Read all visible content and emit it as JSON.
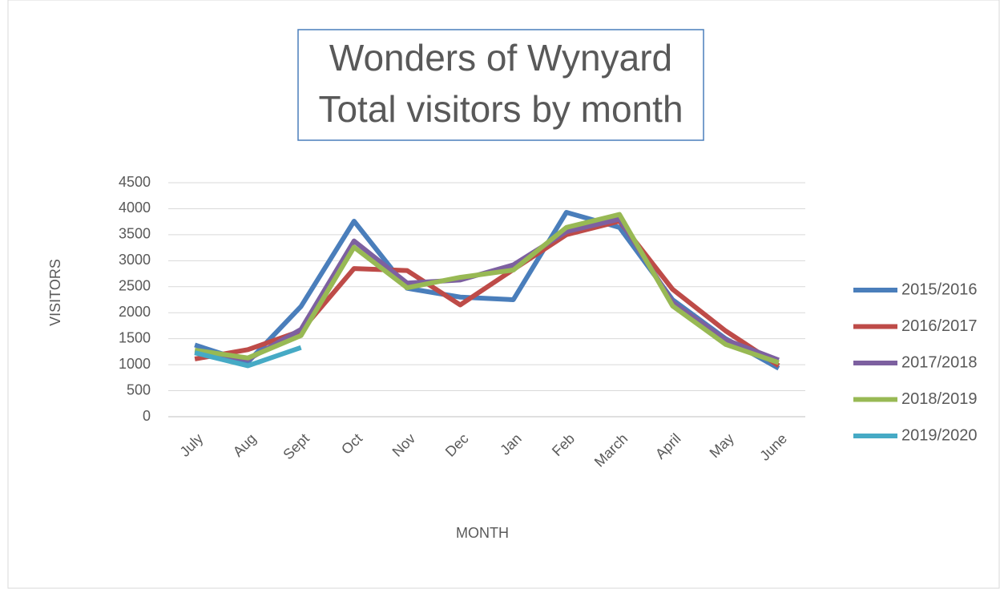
{
  "chart_data": {
    "type": "line",
    "title": [
      "Wonders of Wynyard",
      "Total visitors by month"
    ],
    "x_label": "MONTH",
    "y_label": "VISITORS",
    "categories": [
      "July",
      "Aug",
      "Sept",
      "Oct",
      "Nov",
      "Dec",
      "Jan",
      "Feb",
      "March",
      "April",
      "May",
      "June"
    ],
    "series": [
      {
        "name": "2015/2016",
        "color": "#4a7ebb",
        "values": [
          1380,
          1050,
          2120,
          3760,
          2470,
          2300,
          2250,
          3930,
          3640,
          2250,
          1500,
          930
        ]
      },
      {
        "name": "2016/2017",
        "color": "#be4b48",
        "values": [
          1110,
          1290,
          1650,
          2850,
          2810,
          2150,
          2830,
          3500,
          3760,
          2450,
          1650,
          980
        ]
      },
      {
        "name": "2017/2018",
        "color": "#7d60a0",
        "values": [
          1250,
          1100,
          1680,
          3380,
          2570,
          2630,
          2920,
          3560,
          3800,
          2200,
          1480,
          1090
        ]
      },
      {
        "name": "2018/2019",
        "color": "#98b954",
        "values": [
          1280,
          1130,
          1560,
          3260,
          2480,
          2680,
          2820,
          3640,
          3890,
          2130,
          1390,
          1040
        ]
      },
      {
        "name": "2019/2020",
        "color": "#46aac5",
        "values": [
          1230,
          980,
          1330,
          null,
          null,
          null,
          null,
          null,
          null,
          null,
          null,
          null
        ]
      }
    ],
    "ylim": [
      0,
      4500
    ],
    "yticks": [
      0,
      500,
      1000,
      1500,
      2000,
      2500,
      3000,
      3500,
      4000,
      4500
    ],
    "grid": true,
    "legend": "right"
  }
}
